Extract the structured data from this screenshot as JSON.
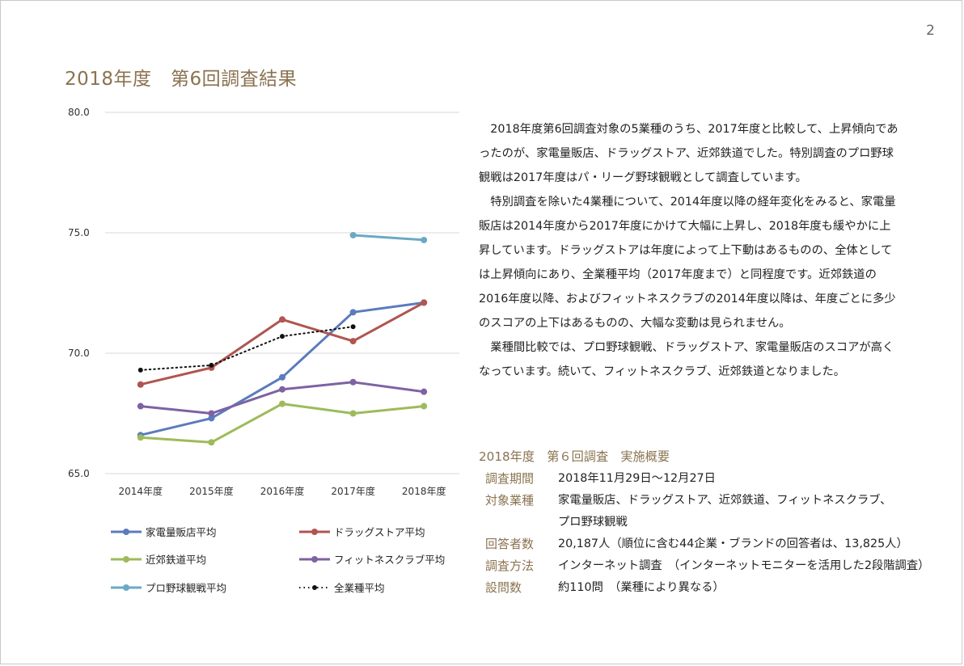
{
  "page": {
    "number": "2",
    "title": "2018年度　第6回調査結果"
  },
  "description": [
    "2018年度第6回調査対象の5業種のうち、2017年度と比較して、上昇傾向であったのが、家電量販店、ドラッグストア、近郊鉄道でした。特別調査のプロ野球観戦は2017年度はパ・リーグ野球観戦として調査しています。",
    "特別調査を除いた4業種について、2014年度以降の経年変化をみると、家電量販店は2014年度から2017年度にかけて大幅に上昇し、2018年度も緩やかに上昇しています。ドラッグストアは年度によって上下動はあるものの、全体としては上昇傾向にあり、全業種平均（2017年度まで）と同程度です。近郊鉄道の2016年度以降、およびフィットネスクラブの2014年度以降は、年度ごとに多少のスコアの上下はあるものの、大幅な変動は見られません。",
    "業種間比較では、プロ野球観戦、ドラッグストア、家電量販店のスコアが高くなっています。続いて、フィットネスクラブ、近郊鉄道となりました。"
  ],
  "summary": {
    "title": "2018年度　第６回調査　実施概要",
    "rows": [
      {
        "key": "調査期間",
        "value": "2018年11月29日～12月27日"
      },
      {
        "key": "対象業種",
        "value": "家電量販店、ドラッグストア、近郊鉄道、フィットネスクラブ、",
        "value2": "プロ野球観戦"
      },
      {
        "key": "回答者数",
        "value": "20,187人（順位に含む44企業・ブランドの回答者は、13,825人）"
      },
      {
        "key": "調査方法",
        "value": "インターネット調査　（インターネットモニターを活用した2段階調査）"
      },
      {
        "key": "設問数",
        "value": "約110問　（業種により異なる）"
      }
    ]
  },
  "chart_data": {
    "type": "line",
    "categories": [
      "2014年度",
      "2015年度",
      "2016年度",
      "2017年度",
      "2018年度"
    ],
    "yticks": [
      "65.0",
      "70.0",
      "75.0",
      "80.0"
    ],
    "ylim": [
      65,
      80
    ],
    "grid": true,
    "legend_position": "bottom",
    "series": [
      {
        "name": "家電量販店平均",
        "color": "#5b7bbd",
        "dashed": false,
        "values": [
          66.6,
          67.3,
          69.0,
          71.7,
          72.1
        ]
      },
      {
        "name": "ドラッグストア平均",
        "color": "#b05550",
        "dashed": false,
        "values": [
          68.7,
          69.4,
          71.4,
          70.5,
          72.1
        ]
      },
      {
        "name": "近郊鉄道平均",
        "color": "#9dbb5a",
        "dashed": false,
        "values": [
          66.5,
          66.3,
          67.9,
          67.5,
          67.8
        ]
      },
      {
        "name": "フィットネスクラブ平均",
        "color": "#7e62a2",
        "dashed": false,
        "values": [
          67.8,
          67.5,
          68.5,
          68.8,
          68.4
        ]
      },
      {
        "name": "プロ野球観戦平均",
        "color": "#6aa9c6",
        "dashed": false,
        "values": [
          null,
          null,
          null,
          74.9,
          74.7
        ]
      },
      {
        "name": "全業種平均",
        "color": "#111111",
        "dashed": true,
        "values": [
          69.3,
          69.5,
          70.7,
          71.1,
          null
        ]
      }
    ]
  }
}
